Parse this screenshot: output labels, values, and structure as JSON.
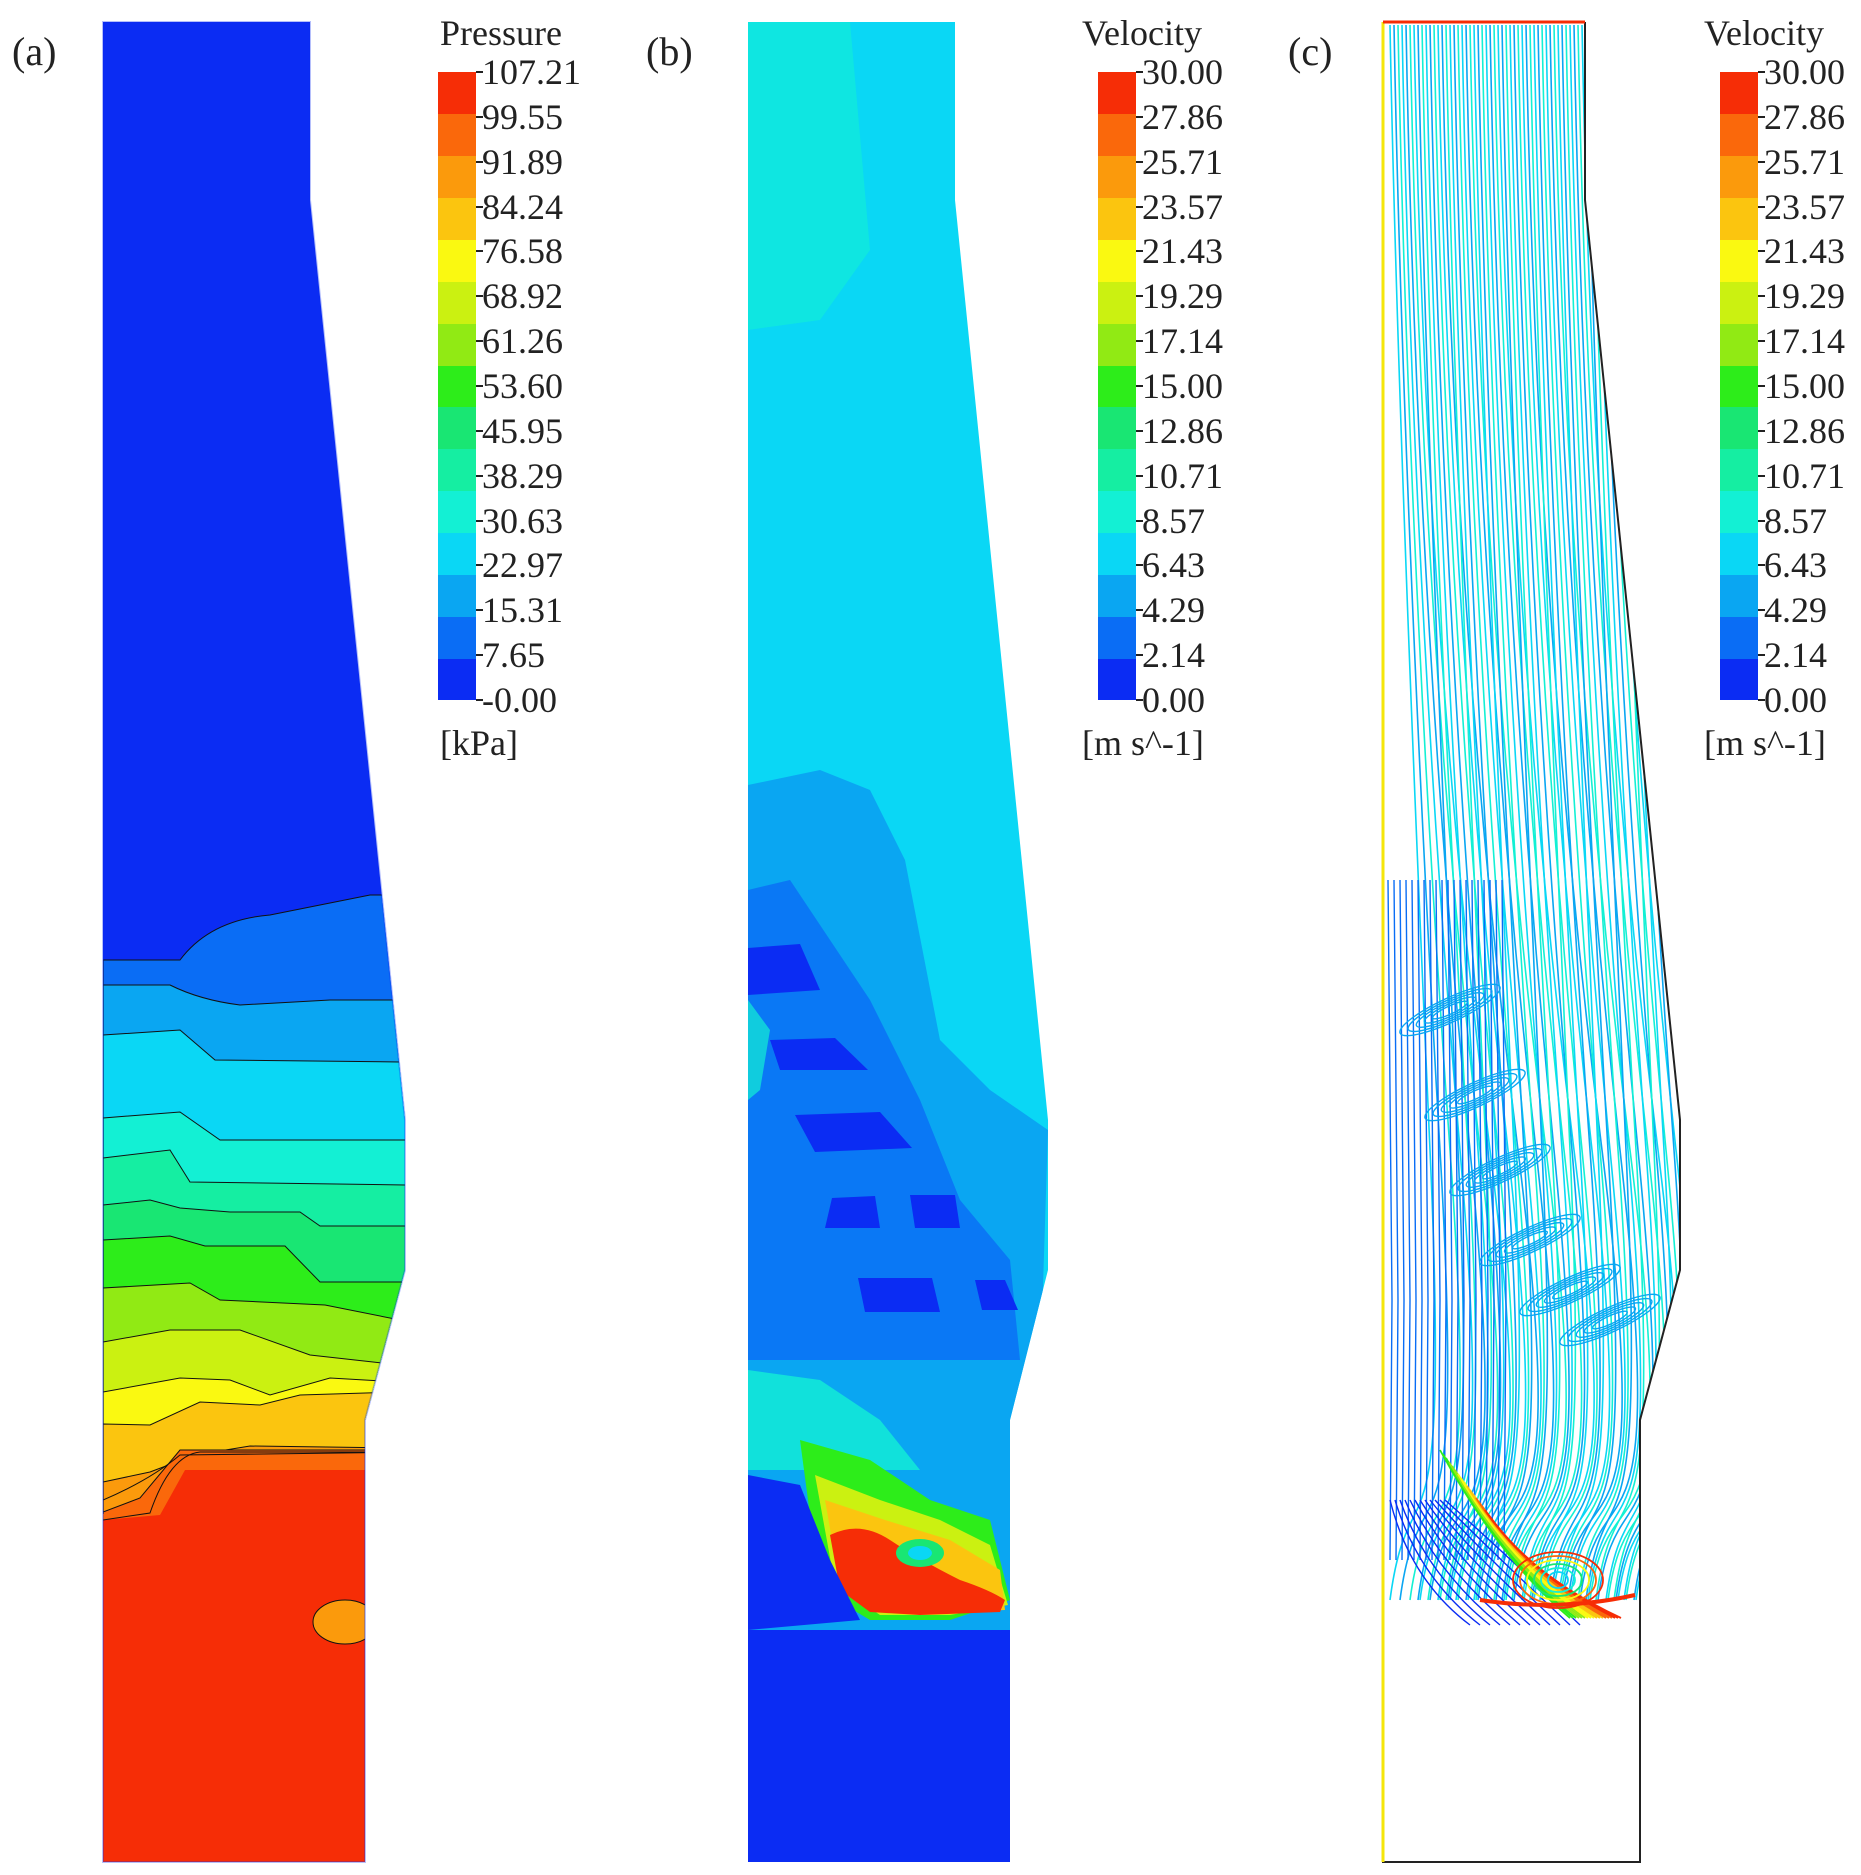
{
  "colormap": [
    "#0b2cf3",
    "#0a6df5",
    "#0aa6f2",
    "#0ad7f5",
    "#13f0d4",
    "#15eea2",
    "#19e673",
    "#2ded1a",
    "#91ea14",
    "#cbf111",
    "#faf911",
    "#fbc50f",
    "#fb9a0c",
    "#fa680b",
    "#f62d06"
  ],
  "panels": [
    {
      "label": "(a)",
      "title": "Pressure",
      "unit": "[kPa]",
      "ticks": [
        "107.21",
        "99.55",
        "91.89",
        "84.24",
        "76.58",
        "68.92",
        "61.26",
        "53.60",
        "45.95",
        "38.29",
        "30.63",
        "22.97",
        "15.31",
        "7.65",
        "-0.00"
      ]
    },
    {
      "label": "(b)",
      "title": "Velocity",
      "unit": "[m s^-1]",
      "ticks": [
        "30.00",
        "27.86",
        "25.71",
        "23.57",
        "21.43",
        "19.29",
        "17.14",
        "15.00",
        "12.86",
        "10.71",
        "8.57",
        "6.43",
        "4.29",
        "2.14",
        "0.00"
      ]
    },
    {
      "label": "(c)",
      "title": "Velocity",
      "unit": "[m s^-1]",
      "ticks": [
        "30.00",
        "27.86",
        "25.71",
        "23.57",
        "21.43",
        "19.29",
        "17.14",
        "15.00",
        "12.86",
        "10.71",
        "8.57",
        "6.43",
        "4.29",
        "2.14",
        "0.00"
      ]
    }
  ]
}
